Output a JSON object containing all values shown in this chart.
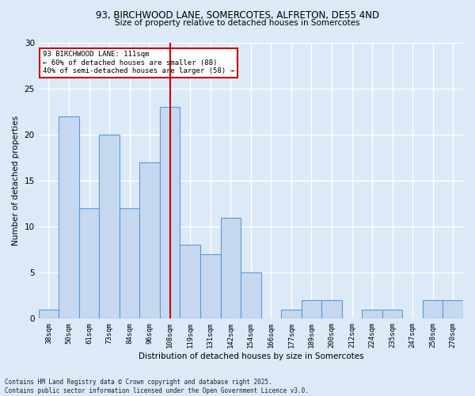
{
  "title_line1": "93, BIRCHWOOD LANE, SOMERCOTES, ALFRETON, DE55 4ND",
  "title_line2": "Size of property relative to detached houses in Somercotes",
  "xlabel": "Distribution of detached houses by size in Somercotes",
  "ylabel": "Number of detached properties",
  "categories": [
    "38sqm",
    "50sqm",
    "61sqm",
    "73sqm",
    "84sqm",
    "96sqm",
    "108sqm",
    "119sqm",
    "131sqm",
    "142sqm",
    "154sqm",
    "166sqm",
    "177sqm",
    "189sqm",
    "200sqm",
    "212sqm",
    "224sqm",
    "235sqm",
    "247sqm",
    "258sqm",
    "270sqm"
  ],
  "values": [
    1,
    22,
    12,
    20,
    12,
    17,
    23,
    8,
    7,
    11,
    5,
    0,
    1,
    2,
    2,
    0,
    1,
    1,
    0,
    2,
    2
  ],
  "bar_color": "#c5d8f0",
  "bar_edge_color": "#5b9bd5",
  "background_color": "#dce9f7",
  "grid_color": "#ffffff",
  "vline_x_index": 6,
  "vline_color": "#cc0000",
  "annotation_line1": "93 BIRCHWOOD LANE: 111sqm",
  "annotation_line2": "← 60% of detached houses are smaller (88)",
  "annotation_line3": "40% of semi-detached houses are larger (58) →",
  "annotation_box_color": "#ffffff",
  "annotation_box_edge_color": "#cc0000",
  "ylim": [
    0,
    30
  ],
  "yticks": [
    0,
    5,
    10,
    15,
    20,
    25,
    30
  ],
  "footer_line1": "Contains HM Land Registry data © Crown copyright and database right 2025.",
  "footer_line2": "Contains public sector information licensed under the Open Government Licence v3.0."
}
